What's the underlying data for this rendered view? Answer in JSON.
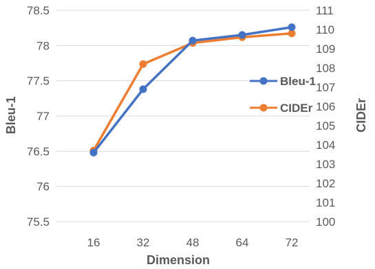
{
  "chart_data": {
    "type": "line",
    "xlabel": "Dimension",
    "ylabel_left": "Bleu-1",
    "ylabel_right": "CIDEr",
    "categories": [
      "16",
      "32",
      "48",
      "64",
      "72"
    ],
    "ylim_left": [
      75.5,
      78.5
    ],
    "ylim_right": [
      100,
      111
    ],
    "yticks_left": [
      "78.5",
      "78",
      "77.5",
      "77",
      "76.5",
      "76",
      "75.5"
    ],
    "yticks_right": [
      "111",
      "110",
      "109",
      "108",
      "107",
      "106",
      "105",
      "104",
      "103",
      "102",
      "101",
      "100"
    ],
    "grid": true,
    "legend_position": "right",
    "series": [
      {
        "name": "Bleu-1",
        "axis": "left",
        "color": "#4472C4",
        "values": [
          76.48,
          77.38,
          78.07,
          78.15,
          78.26
        ]
      },
      {
        "name": "CIDEr",
        "axis": "right",
        "color": "#ED7D31",
        "values": [
          103.7,
          108.2,
          109.3,
          109.6,
          109.8
        ]
      }
    ]
  }
}
